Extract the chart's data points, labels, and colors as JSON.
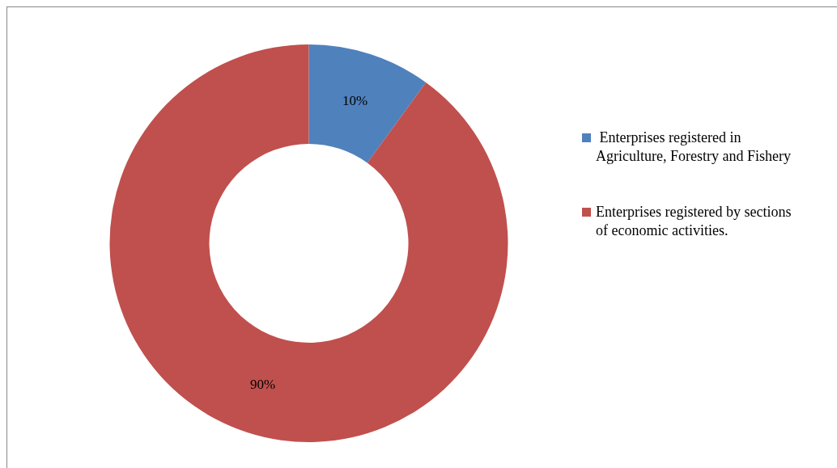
{
  "chart_data": {
    "type": "donut",
    "categories": [
      " Enterprises registered in Agriculture, Forestry and Fishery",
      "Enterprises registered by sections of economic activities."
    ],
    "values": [
      10,
      90
    ],
    "colors": [
      "#4f81bd",
      "#c0504d"
    ],
    "value_labels": [
      "10%",
      "90%"
    ],
    "legend": "right"
  }
}
